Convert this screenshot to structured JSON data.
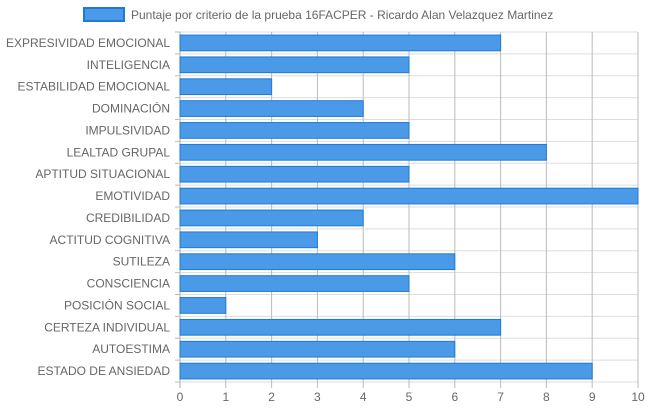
{
  "chart_data": {
    "type": "bar",
    "orientation": "horizontal",
    "legend": {
      "label": "Puntaje por criterio de la prueba 16FACPER - Ricardo Alan Velazquez Martinez",
      "placement": "top-center"
    },
    "categories": [
      "EXPRESIVIDAD EMOCIONAL",
      "INTELIGENCIA",
      "ESTABILIDAD EMOCIONAL",
      "DOMINACIÓN",
      "IMPULSIVIDAD",
      "LEALTAD GRUPAL",
      "APTITUD SITUACIONAL",
      "EMOTIVIDAD",
      "CREDIBILIDAD",
      "ACTITUD COGNITIVA",
      "SUTILEZA",
      "CONSCIENCIA",
      "POSICIÓN SOCIAL",
      "CERTEZA INDIVIDUAL",
      "AUTOESTIMA",
      "ESTADO DE ANSIEDAD"
    ],
    "series": [
      {
        "name": "Puntaje por criterio de la prueba 16FACPER - Ricardo Alan Velazquez Martinez",
        "values": [
          7,
          5,
          2,
          4,
          5,
          8,
          5,
          10,
          4,
          3,
          6,
          5,
          1,
          7,
          6,
          9
        ]
      }
    ],
    "xlim": [
      0,
      10
    ],
    "xticks": [
      "0",
      "1",
      "2",
      "3",
      "4",
      "5",
      "6",
      "7",
      "8",
      "9",
      "10"
    ],
    "grid": true,
    "colors": {
      "bar_fill": "#4a9ae8",
      "bar_stroke": "#1e7ad6",
      "grid": "#dddddd",
      "text": "#666666"
    }
  }
}
